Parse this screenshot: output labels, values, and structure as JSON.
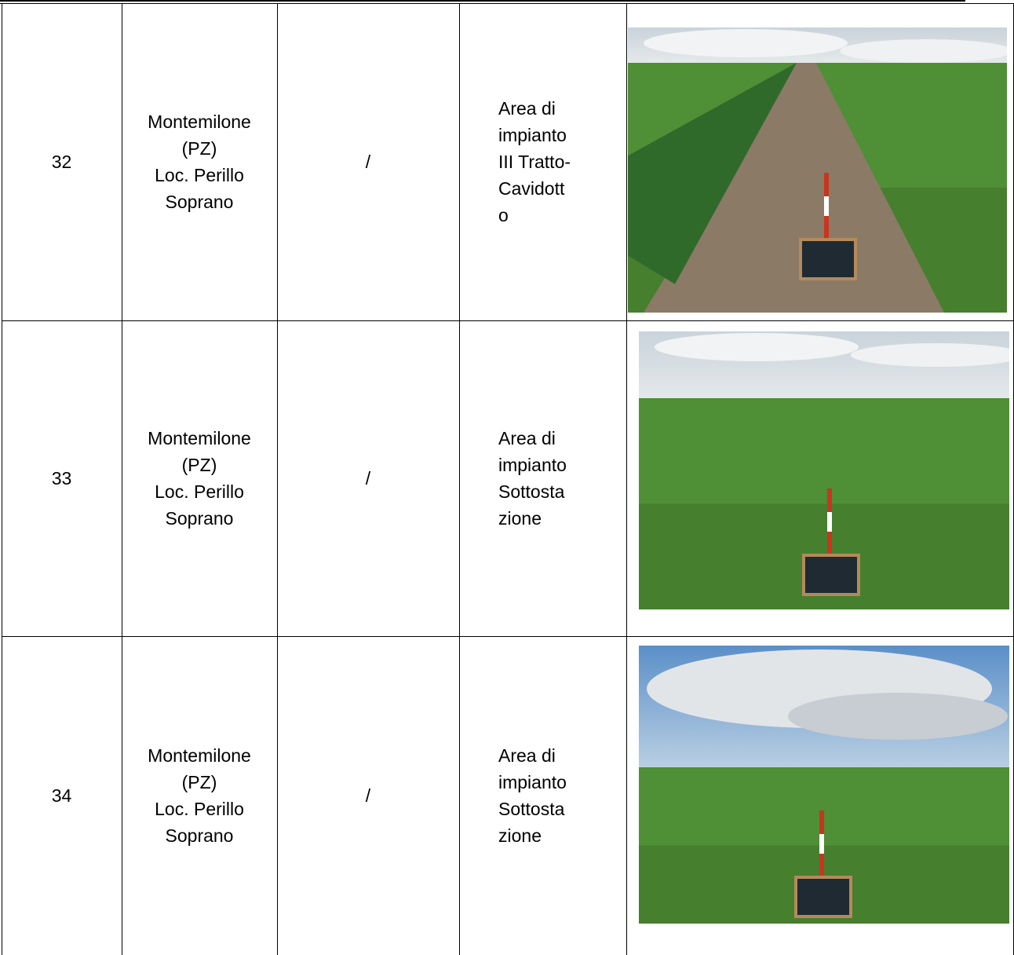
{
  "table": {
    "rows": [
      {
        "number": "32",
        "location": [
          "Montemilone",
          "(PZ)",
          "Loc. Perillo",
          "Soprano"
        ],
        "reference": "/",
        "area": [
          "Area di",
          "impianto",
          "III Tratto-",
          "Cavidott",
          "o"
        ]
      },
      {
        "number": "33",
        "location": [
          "Montemilone",
          "(PZ)",
          "Loc. Perillo",
          "Soprano"
        ],
        "reference": "/",
        "area": [
          "Area  di",
          "impianto",
          "Sottosta",
          "zione"
        ]
      },
      {
        "number": "34",
        "location": [
          "Montemilone",
          "(PZ)",
          "Loc. Perillo",
          "Soprano"
        ],
        "reference": "/",
        "area": [
          "Area  di",
          "impianto",
          "Sottosta",
          "zione"
        ]
      }
    ]
  }
}
